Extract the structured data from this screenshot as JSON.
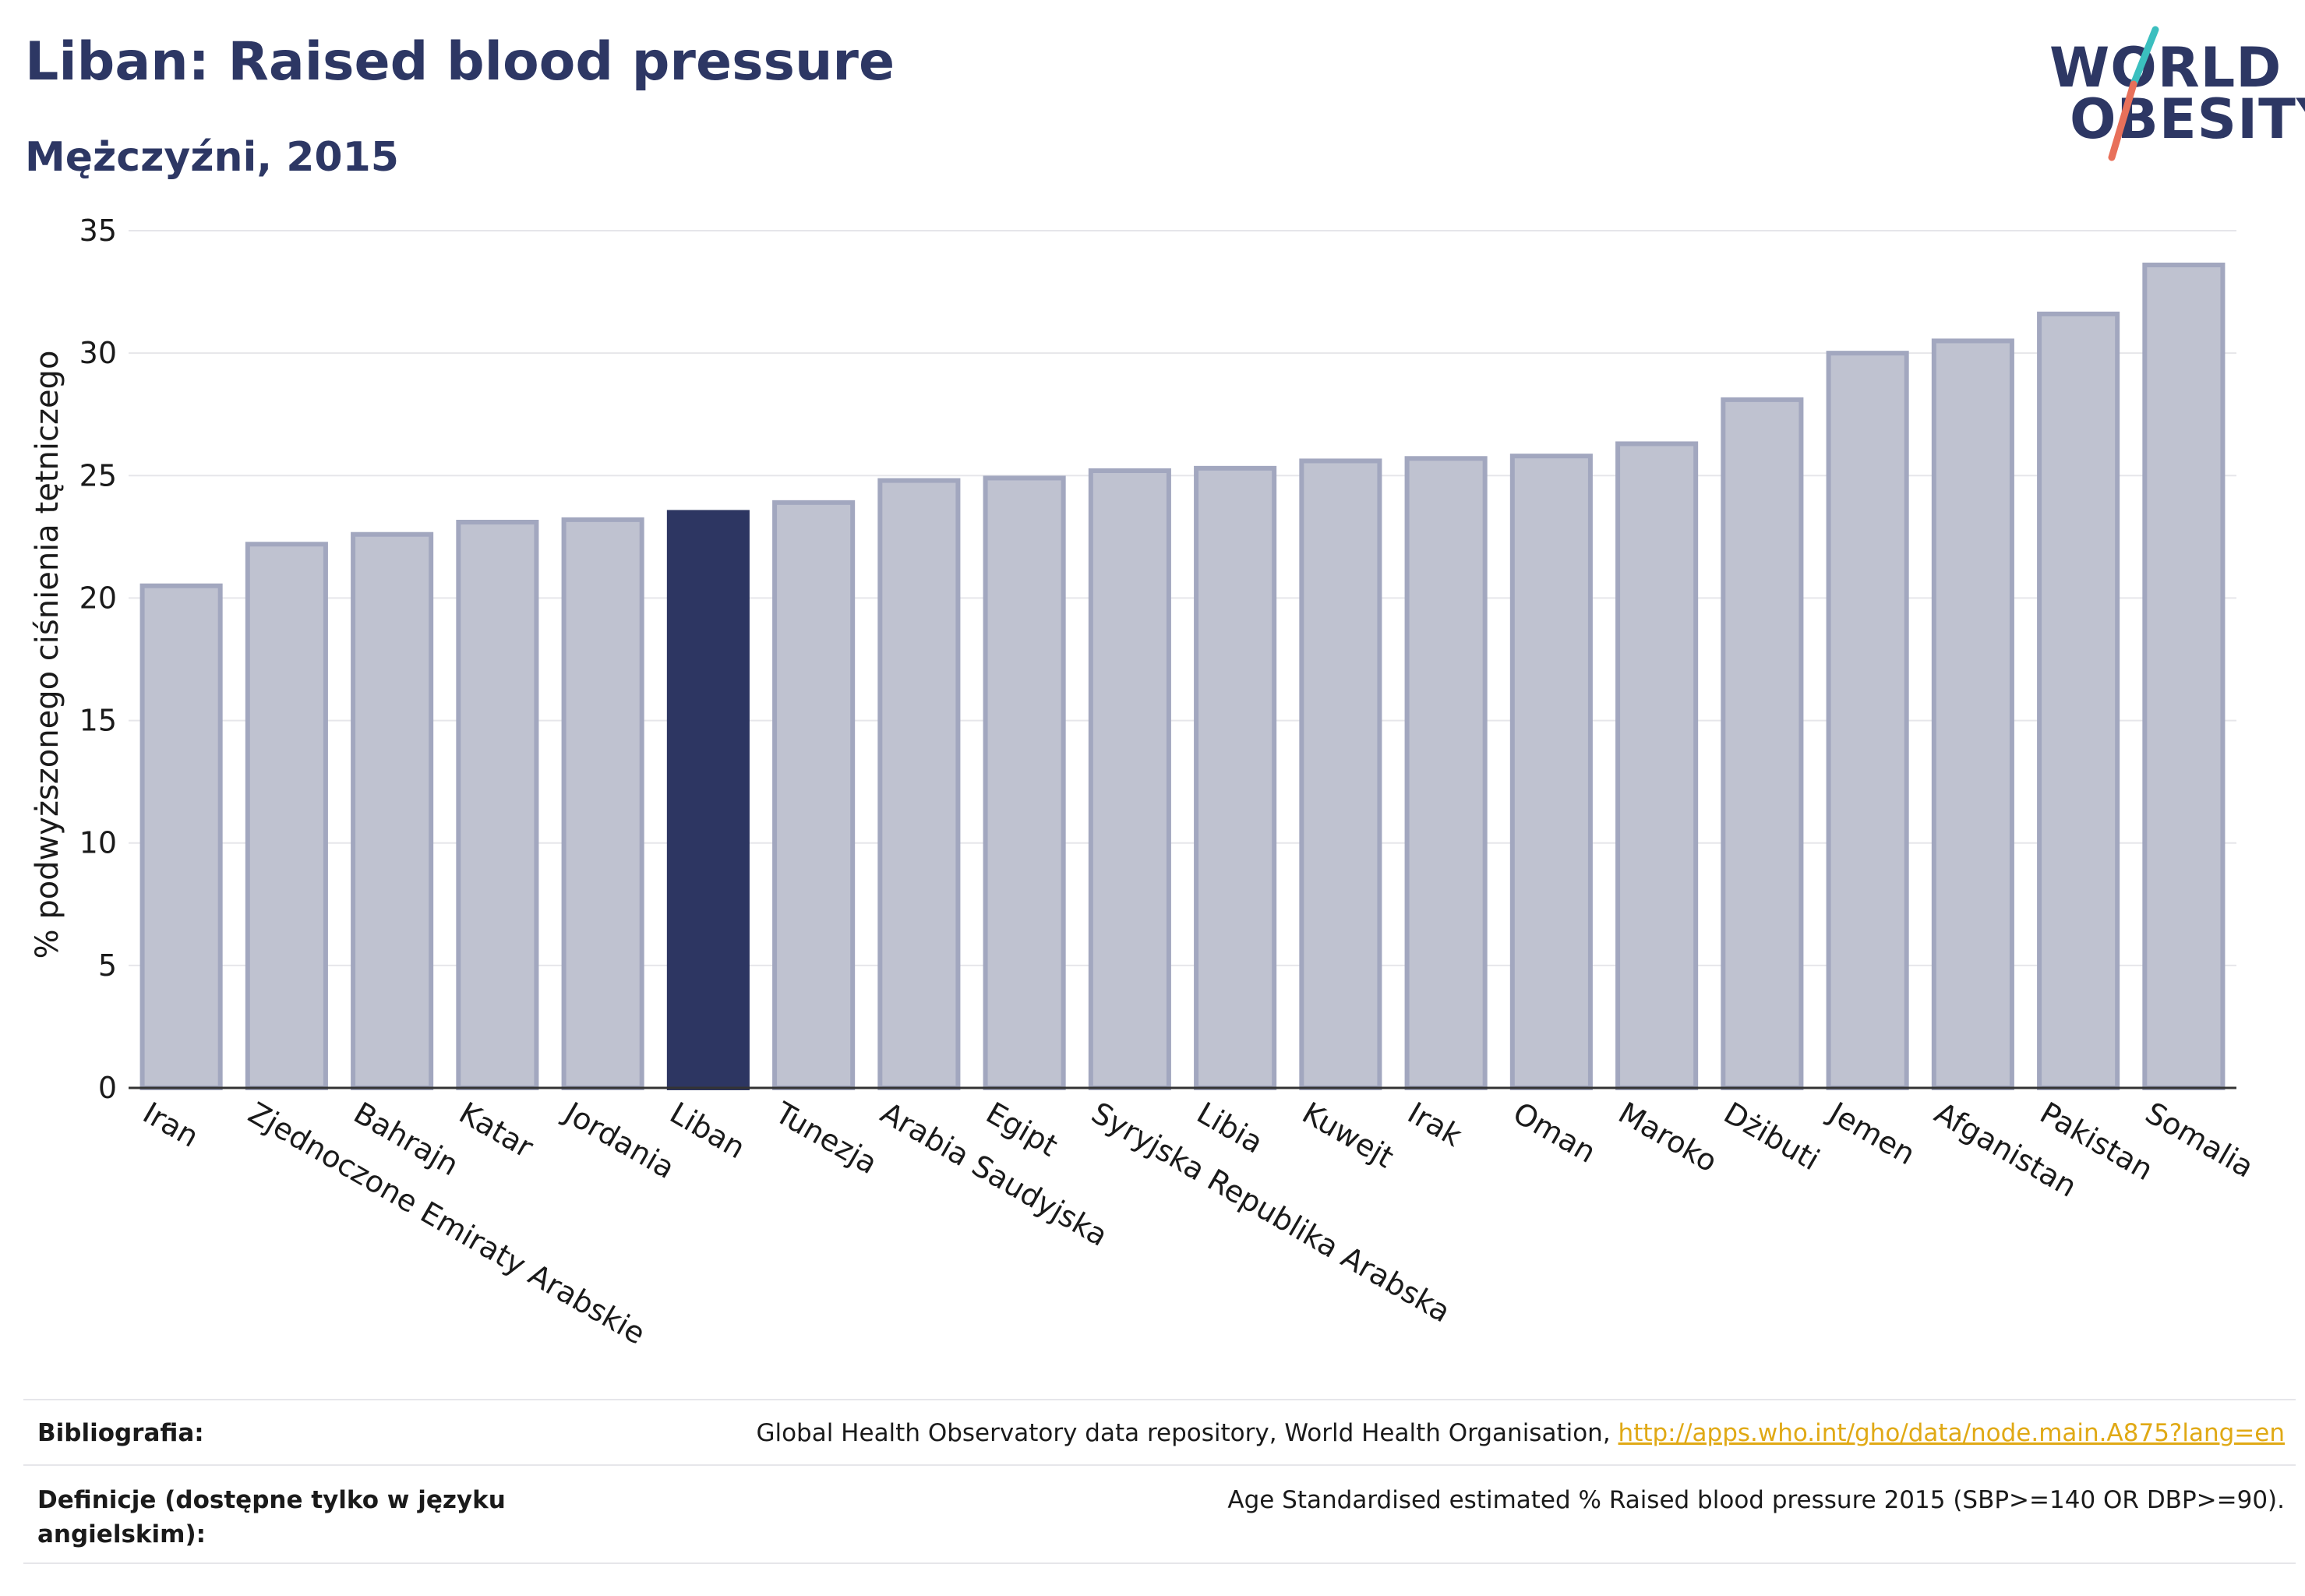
{
  "header": {
    "title": "Liban: Raised blood pressure",
    "subtitle": "Mężczyźni, 2015"
  },
  "logo": {
    "line1": "WORLD",
    "line2": "OBESITY",
    "accent_teal": "#3bbfbf",
    "accent_coral": "#e8705a"
  },
  "colors": {
    "bar_default": "#bfc2d0",
    "bar_border": "#a2a7bf",
    "bar_highlight": "#2d3662",
    "text": "#1a1a1a",
    "grid": "#e6e6ea"
  },
  "chart_data": {
    "type": "bar",
    "ylabel": "% podwyższonego ciśnienia tętniczego",
    "ylim": [
      0,
      35
    ],
    "yticks": [
      0,
      5,
      10,
      15,
      20,
      25,
      30,
      35
    ],
    "grid": true,
    "highlight": "Liban",
    "categories": [
      "Iran",
      "Zjednoczone Emiraty Arabskie",
      "Bahrajn",
      "Katar",
      "Jordania",
      "Liban",
      "Tunezja",
      "Arabia Saudyjska",
      "Egipt",
      "Syryjska Republika Arabska",
      "Libia",
      "Kuwejt",
      "Irak",
      "Oman",
      "Maroko",
      "Dżibuti",
      "Jemen",
      "Afganistan",
      "Pakistan",
      "Somalia"
    ],
    "values": [
      20.5,
      22.2,
      22.6,
      23.1,
      23.2,
      23.5,
      23.9,
      24.8,
      24.9,
      25.2,
      25.3,
      25.6,
      25.7,
      25.8,
      26.3,
      28.1,
      30.0,
      30.5,
      31.6,
      33.6
    ]
  },
  "footer": {
    "bibliography_label": "Bibliografia:",
    "bibliography_text": "Global Health Observatory data repository, World Health Organisation, ",
    "bibliography_link": "http://apps.who.int/gho/data/node.main.A875?lang=en",
    "definition_label": "Definicje (dostępne tylko w języku angielskim):",
    "definition_text": "Age Standardised estimated % Raised blood pressure 2015 (SBP>=140 OR DBP>=90)."
  }
}
